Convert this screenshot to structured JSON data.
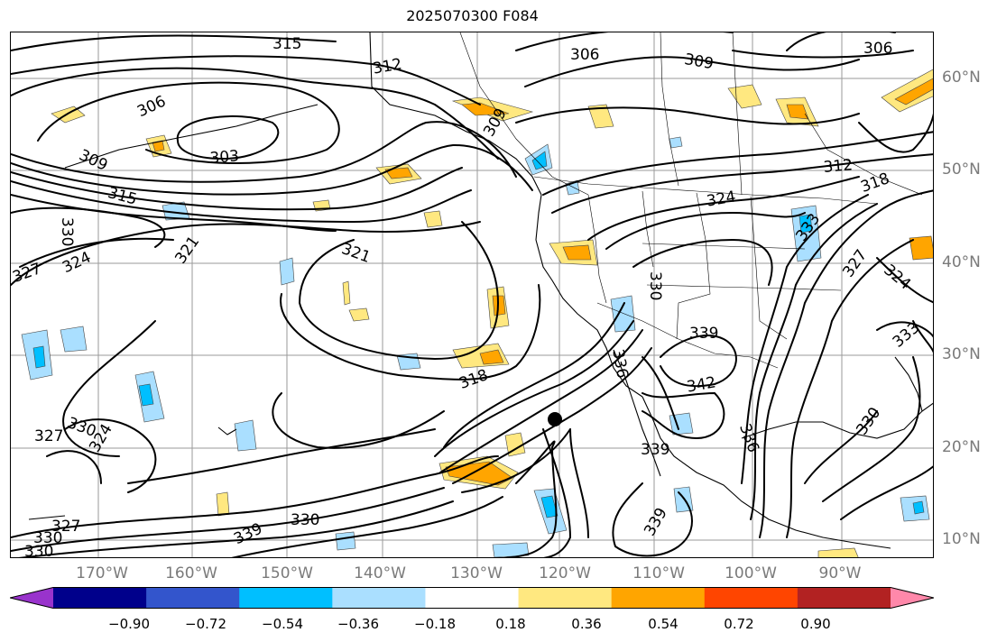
{
  "title": "2025070300 F084",
  "map": {
    "lat_labels": [
      "60°N",
      "50°N",
      "40°N",
      "30°N",
      "20°N",
      "10°N"
    ],
    "lon_labels": [
      "170°W",
      "160°W",
      "150°W",
      "140°W",
      "130°W",
      "120°W",
      "110°W",
      "100°W",
      "90°W"
    ],
    "contour_labels": [
      "315",
      "312",
      "306",
      "309",
      "306",
      "306",
      "303",
      "309",
      "309",
      "312",
      "318",
      "315",
      "324",
      "330",
      "321",
      "327",
      "324",
      "321",
      "330",
      "339",
      "333",
      "327",
      "324",
      "336",
      "318",
      "342",
      "339",
      "327",
      "330",
      "324",
      "330",
      "327",
      "330",
      "330",
      "339",
      "339",
      "336",
      "333",
      "330"
    ]
  },
  "colorbar": {
    "labels": [
      "−0.90",
      "−0.72",
      "−0.54",
      "−0.36",
      "−0.18",
      "0.18",
      "0.36",
      "0.54",
      "0.72",
      "0.90"
    ],
    "colors": [
      "#9933cc",
      "#00008b",
      "#3355cc",
      "#00bfff",
      "#aadfff",
      "#ffffff",
      "#ffe880",
      "#ffa500",
      "#ff4500",
      "#b22222",
      "#ff88aa"
    ]
  }
}
